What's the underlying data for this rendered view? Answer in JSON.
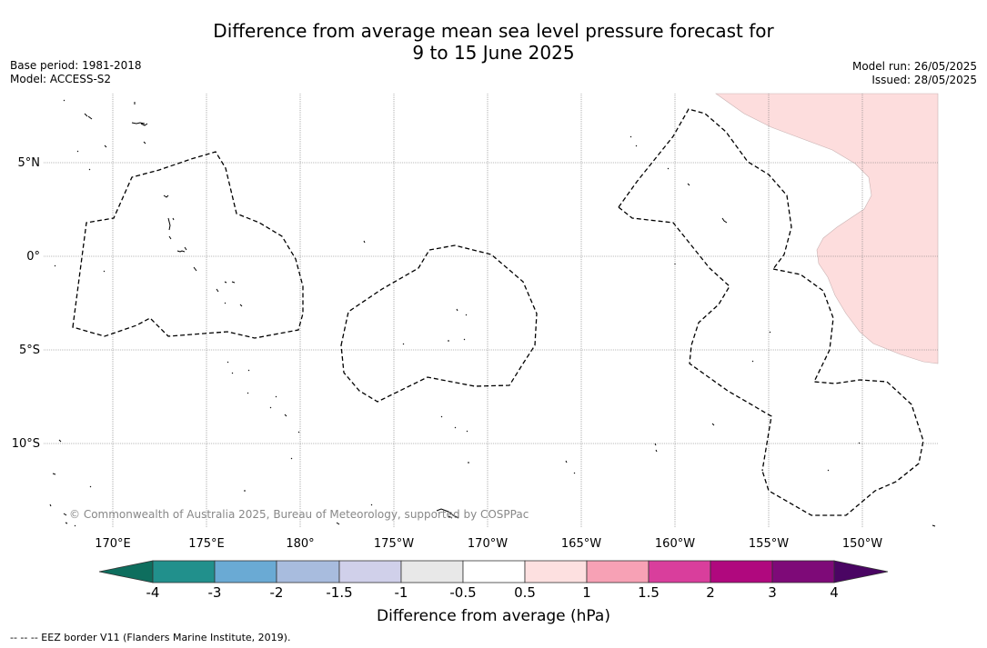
{
  "title_line1": "Difference from average mean sea level pressure forecast for",
  "title_line2": "9 to 15 June 2025",
  "meta_left": {
    "base_period": "Base period: 1981-2018",
    "model": "Model: ACCESS-S2"
  },
  "meta_right": {
    "model_run": "Model run: 26/05/2025",
    "issued": "Issued: 28/05/2025"
  },
  "map": {
    "copyright": "© Commonwealth of Australia 2025, Bureau of Meteorology, supported by COSPPac",
    "lon_labels": [
      "170°E",
      "175°E",
      "180°",
      "175°W",
      "170°W",
      "165°W",
      "160°W",
      "155°W",
      "150°W"
    ],
    "lat_labels": [
      "5°N",
      "0°",
      "5°S",
      "10°S"
    ],
    "anomaly_fill_color": "#fddddd",
    "anomaly_region": "north-east positive anomaly (0.5 to 1 hPa)"
  },
  "colorbar": {
    "title": "Difference from average (hPa)",
    "tick_labels": [
      "-4",
      "-3",
      "-2",
      "-1.5",
      "-1",
      "-0.5",
      "0.5",
      "1",
      "1.5",
      "2",
      "3",
      "4"
    ],
    "colors": [
      "#0e6e5e",
      "#21908c",
      "#6aaad4",
      "#a8bcde",
      "#d0d0ea",
      "#e8e8e8",
      "#ffffff",
      "#fde0e0",
      "#f7a1b5",
      "#d93e9c",
      "#b0087e",
      "#7e0a78",
      "#4a0563"
    ]
  },
  "footer": "--  --  -- EEZ border V11 (Flanders Marine Institute, 2019)."
}
